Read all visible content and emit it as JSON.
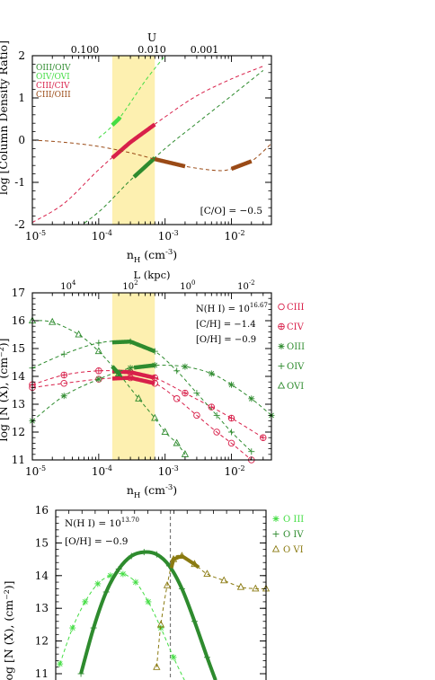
{
  "chart_data": [
    {
      "type": "line",
      "top_axis_label": "U",
      "top_ticks": [
        "0.100",
        "0.010",
        "0.001"
      ],
      "ylabel": "log [Column Density Ratio]",
      "xlabel_main": "n",
      "xlabel_sub": "H",
      "xlabel_unit": " (cm",
      "xlabel_exp": "-3",
      "xlabel_close": ")",
      "x_scale": "log",
      "xlim": [
        1e-05,
        0.04
      ],
      "ylim": [
        -2,
        2
      ],
      "x_ticks": [
        {
          "v": 1e-05,
          "base": "10",
          "exp": "-5"
        },
        {
          "v": 0.0001,
          "base": "10",
          "exp": "-4"
        },
        {
          "v": 0.001,
          "base": "10",
          "exp": "-3"
        },
        {
          "v": 0.01,
          "base": "10",
          "exp": "-2"
        }
      ],
      "y_ticks": [
        "-2",
        "-1",
        "0",
        "1",
        "2"
      ],
      "shaded_region": [
        0.00016,
        0.0007
      ],
      "annotation": "[C/O] = −0.5",
      "legend": [
        {
          "name": "OIII/OIV",
          "color": "#2e8b2e"
        },
        {
          "name": "OIV/OVI",
          "color": "#44dd44"
        },
        {
          "name": "CIII/CIV",
          "color": "#d8204a"
        },
        {
          "name": "CIII/OIII",
          "color": "#9a4a16"
        }
      ],
      "series": [
        {
          "name": "OIII/OIV",
          "color": "#2e8b2e",
          "x": [
            1e-05,
            3e-05,
            0.0001,
            0.0003,
            0.001,
            0.003,
            0.01,
            0.03
          ],
          "y": [
            -2.8,
            -2.3,
            -1.7,
            -0.95,
            -0.2,
            0.4,
            1.05,
            1.65
          ],
          "bold": [
            0.00034,
            0.0007
          ]
        },
        {
          "name": "OIV/OVI",
          "color": "#44dd44",
          "x": [
            0.0001,
            0.0002,
            0.0005,
            0.001
          ],
          "y": [
            0.05,
            0.5,
            1.4,
            2.0
          ],
          "bold": [
            0.00016,
            0.00021
          ]
        },
        {
          "name": "CIII/CIV",
          "color": "#d8204a",
          "x": [
            1e-05,
            3e-05,
            0.0001,
            0.0003,
            0.001,
            0.003,
            0.01,
            0.03
          ],
          "y": [
            -1.95,
            -1.5,
            -0.7,
            -0.05,
            0.55,
            1.05,
            1.45,
            1.75
          ],
          "bold": [
            0.00016,
            0.0007
          ]
        },
        {
          "name": "CIII/OIII",
          "color": "#9a4a16",
          "x": [
            1e-05,
            3e-05,
            0.0001,
            0.0003,
            0.0007,
            0.002,
            0.006,
            0.01,
            0.02,
            0.04
          ],
          "y": [
            0.0,
            -0.05,
            -0.15,
            -0.3,
            -0.45,
            -0.62,
            -0.72,
            -0.68,
            -0.5,
            -0.08
          ],
          "bold_ranges": [
            [
              0.0007,
              0.002
            ],
            [
              0.01,
              0.02
            ]
          ]
        }
      ]
    },
    {
      "type": "line",
      "top_axis_label": "L (kpc)",
      "top_ticks": [
        {
          "base": "10",
          "exp": "4"
        },
        {
          "base": "10",
          "exp": "2"
        },
        {
          "base": "10",
          "exp": "0"
        },
        {
          "base": "10",
          "exp": "-2"
        }
      ],
      "ylabel": "log [N (X), (cm⁻²)]",
      "xlabel_main": "n",
      "xlabel_sub": "H",
      "xlabel_unit": " (cm",
      "xlabel_exp": "-3",
      "xlabel_close": ")",
      "x_scale": "log",
      "xlim": [
        1e-05,
        0.04
      ],
      "ylim": [
        11,
        17
      ],
      "x_ticks": [
        {
          "v": 1e-05,
          "base": "10",
          "exp": "-5"
        },
        {
          "v": 0.0001,
          "base": "10",
          "exp": "-4"
        },
        {
          "v": 0.001,
          "base": "10",
          "exp": "-3"
        },
        {
          "v": 0.01,
          "base": "10",
          "exp": "-2"
        }
      ],
      "y_ticks": [
        "11",
        "12",
        "13",
        "14",
        "15",
        "16",
        "17"
      ],
      "shaded_region": [
        0.00016,
        0.0007
      ],
      "annotations": [
        {
          "text": "N(H I) = 10",
          "exp": "16.67"
        },
        {
          "text": "[C/H] = −1.4",
          "exp": ""
        },
        {
          "text": "[O/H] = −0.9",
          "exp": ""
        }
      ],
      "legend": [
        {
          "name": "CIII",
          "color": "#d8204a",
          "marker": "circle"
        },
        {
          "name": "CIV",
          "color": "#d8204a",
          "marker": "circle-plus"
        },
        {
          "name": "OIII",
          "color": "#2e8b2e",
          "marker": "asterisk"
        },
        {
          "name": "OIV",
          "color": "#2e8b2e",
          "marker": "plus"
        },
        {
          "name": "OVI",
          "color": "#2e8b2e",
          "marker": "triangle"
        }
      ],
      "series": [
        {
          "name": "CIII",
          "color": "#d8204a",
          "marker": "circle",
          "x": [
            1e-05,
            3e-05,
            0.0001,
            0.0003,
            0.0007,
            0.0015,
            0.003,
            0.006,
            0.01,
            0.02
          ],
          "y": [
            13.6,
            13.75,
            13.9,
            13.95,
            13.75,
            13.2,
            12.6,
            12.0,
            11.6,
            11.0
          ],
          "bold": [
            0.00016,
            0.0007
          ]
        },
        {
          "name": "CIV",
          "color": "#d8204a",
          "marker": "circle-plus",
          "x": [
            1e-05,
            3e-05,
            0.0001,
            0.0003,
            0.0007,
            0.002,
            0.005,
            0.01,
            0.03
          ],
          "y": [
            13.7,
            14.05,
            14.2,
            14.15,
            13.95,
            13.4,
            12.9,
            12.5,
            11.8
          ],
          "bold": [
            0.00016,
            0.0007
          ]
        },
        {
          "name": "OIII",
          "color": "#2e8b2e",
          "marker": "asterisk",
          "x": [
            1e-05,
            3e-05,
            0.0001,
            0.0003,
            0.0007,
            0.002,
            0.005,
            0.01,
            0.02,
            0.04
          ],
          "y": [
            12.4,
            13.3,
            13.9,
            14.3,
            14.4,
            14.35,
            14.1,
            13.7,
            13.2,
            12.6
          ],
          "bold": [
            0.00034,
            0.0007
          ]
        },
        {
          "name": "OIV",
          "color": "#2e8b2e",
          "marker": "plus",
          "x": [
            1e-05,
            3e-05,
            0.0001,
            0.0003,
            0.0007,
            0.0015,
            0.003,
            0.006,
            0.01,
            0.02
          ],
          "y": [
            14.3,
            14.8,
            15.2,
            15.25,
            14.9,
            14.2,
            13.4,
            12.6,
            12.0,
            11.3
          ],
          "bold": [
            0.00016,
            0.0007
          ]
        },
        {
          "name": "OVI",
          "color": "#2e8b2e",
          "marker": "triangle",
          "x": [
            1e-05,
            2e-05,
            5e-05,
            0.0001,
            0.0002,
            0.0004,
            0.0007,
            0.001,
            0.0015,
            0.002
          ],
          "y": [
            16.0,
            15.95,
            15.5,
            14.9,
            14.1,
            13.2,
            12.5,
            12.0,
            11.6,
            11.2
          ],
          "bold": [
            0.00016,
            0.00021
          ]
        }
      ]
    },
    {
      "type": "line",
      "ylabel": "log [N (X), (cm⁻²)]",
      "ylim": [
        11,
        16
      ],
      "xlim": [
        0,
        1
      ],
      "y_ticks": [
        "11",
        "12",
        "13",
        "14",
        "15",
        "16"
      ],
      "annotations": [
        {
          "text": "N(H I) = 10",
          "exp": "13.70"
        },
        {
          "text": "[O/H] = −0.9",
          "exp": ""
        }
      ],
      "legend": [
        {
          "name": "O III",
          "color": "#44dd44",
          "marker": "asterisk"
        },
        {
          "name": "O IV",
          "color": "#2e8b2e",
          "marker": "plus"
        },
        {
          "name": "O VI",
          "color": "#8a7a10",
          "marker": "triangle"
        }
      ],
      "vline": 0.545,
      "series": [
        {
          "name": "O III",
          "color": "#44dd44",
          "marker": "asterisk",
          "dashed": true,
          "x": [
            0.02,
            0.08,
            0.14,
            0.2,
            0.26,
            0.32,
            0.38,
            0.44,
            0.5,
            0.56,
            0.62
          ],
          "y": [
            11.3,
            12.4,
            13.2,
            13.75,
            14.0,
            14.05,
            13.8,
            13.2,
            12.4,
            11.5,
            10.7
          ]
        },
        {
          "name": "O IV",
          "color": "#2e8b2e",
          "marker": "plus",
          "dashed": false,
          "x": [
            0.12,
            0.18,
            0.24,
            0.3,
            0.36,
            0.42,
            0.48,
            0.54,
            0.6,
            0.66,
            0.72,
            0.76
          ],
          "y": [
            11.0,
            12.4,
            13.5,
            14.2,
            14.6,
            14.72,
            14.65,
            14.3,
            13.6,
            12.6,
            11.5,
            10.8
          ]
        },
        {
          "name": "O VI",
          "color": "#8a7a10",
          "marker": "triangle",
          "dashed": true,
          "x": [
            0.48,
            0.5,
            0.53,
            0.56,
            0.6,
            0.66,
            0.72,
            0.8,
            0.88,
            0.95,
            1.0
          ],
          "y": [
            11.2,
            12.5,
            13.7,
            14.5,
            14.6,
            14.35,
            14.05,
            13.85,
            13.65,
            13.6,
            13.6
          ],
          "bold": [
            0.55,
            0.68
          ]
        }
      ]
    }
  ]
}
